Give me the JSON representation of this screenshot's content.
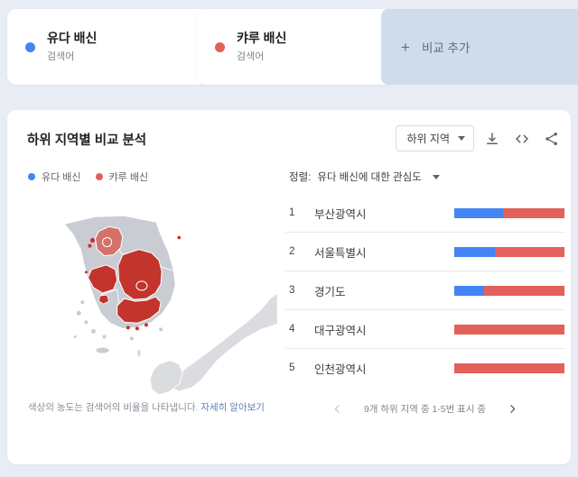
{
  "page": {
    "background": "#e8ecf4",
    "card_background": "#ffffff"
  },
  "comparison_bar": {
    "terms": [
      {
        "label": "유다 배신",
        "type_label": "검색어",
        "color": "#4285f4"
      },
      {
        "label": "캬루 배신",
        "type_label": "검색어",
        "color": "#e4605a"
      }
    ],
    "add_button": {
      "plus": "+",
      "label": "비교 추가",
      "background": "#cfdcec",
      "text_color": "#5f6e80"
    }
  },
  "widget": {
    "title": "하위 지역별 비교 분석",
    "breakdown_dropdown": {
      "value": "하위 지역"
    },
    "legend": [
      {
        "label": "유다 배신",
        "color": "#4285f4"
      },
      {
        "label": "캬루 배신",
        "color": "#e4605a"
      }
    ],
    "sort": {
      "prefix": "정렬:",
      "value": "유다 배신에 대한 관심도"
    },
    "note": {
      "text": "색상의 농도는 검색어의 비율을 나타냅니다.",
      "link_label": "자세히 알아보기"
    },
    "pagination": {
      "label": "9개 하위 지역 중 1-5번 표시 중",
      "prev_enabled": false,
      "next_enabled": true
    }
  },
  "regions": [
    {
      "rank": "1",
      "name": "부산광역시",
      "term1_pct": 44,
      "term2_pct": 56
    },
    {
      "rank": "2",
      "name": "서울특별시",
      "term1_pct": 37,
      "term2_pct": 63
    },
    {
      "rank": "3",
      "name": "경기도",
      "term1_pct": 27,
      "term2_pct": 73
    },
    {
      "rank": "4",
      "name": "대구광역시",
      "term1_pct": 0,
      "term2_pct": 100
    },
    {
      "rank": "5",
      "name": "인천광역시",
      "term1_pct": 0,
      "term2_pct": 100
    }
  ],
  "chart_data": {
    "type": "bar",
    "orientation": "horizontal_stacked",
    "title": "하위 지역별 비교 분석",
    "categories": [
      "부산광역시",
      "서울특별시",
      "경기도",
      "대구광역시",
      "인천광역시"
    ],
    "series": [
      {
        "name": "유다 배신",
        "color": "#4285f4",
        "values": [
          44,
          37,
          27,
          0,
          0
        ]
      },
      {
        "name": "캬루 배신",
        "color": "#e4605a",
        "values": [
          56,
          63,
          73,
          100,
          100
        ]
      }
    ],
    "value_format": "relative interest share (%)",
    "legend_position": "top-left",
    "sorted_by": "유다 배신에 대한 관심도",
    "total_regions_note": "9개 하위 지역 중 1-5번 표시 중"
  },
  "map": {
    "fill_intense": "#c2342c",
    "fill_medium": "#d4716b",
    "fill_base": "#c9ccd2",
    "fill_neighbor": "#dadce0",
    "border_color": "#ffffff"
  }
}
